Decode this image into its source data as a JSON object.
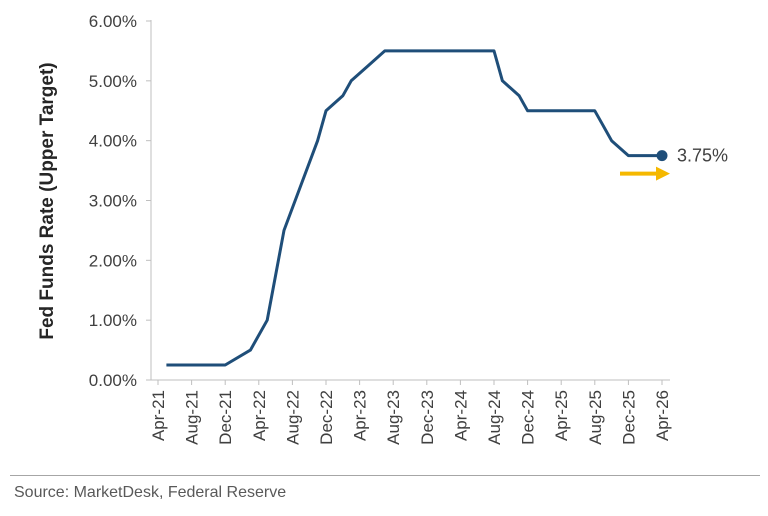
{
  "chart_data": {
    "type": "line",
    "title": "",
    "ylabel": "Fed Funds Rate (Upper Target)",
    "xlabel": "",
    "ylim": [
      0,
      6
    ],
    "ytick_labels": [
      "0.00%",
      "1.00%",
      "2.00%",
      "3.00%",
      "4.00%",
      "5.00%",
      "6.00%"
    ],
    "ytick_values": [
      0,
      1,
      2,
      3,
      4,
      5,
      6
    ],
    "xtick_labels": [
      "Apr-21",
      "Aug-21",
      "Dec-21",
      "Apr-22",
      "Aug-22",
      "Dec-22",
      "Apr-23",
      "Aug-23",
      "Dec-23",
      "Apr-24",
      "Aug-24",
      "Dec-24",
      "Apr-25",
      "Aug-25",
      "Dec-25",
      "Apr-26"
    ],
    "xtick_values": [
      "2021-04",
      "2021-08",
      "2021-12",
      "2022-04",
      "2022-08",
      "2022-12",
      "2023-04",
      "2023-08",
      "2023-12",
      "2024-04",
      "2024-08",
      "2024-12",
      "2025-04",
      "2025-08",
      "2025-12",
      "2026-04"
    ],
    "series": [
      {
        "color": "#1f4e79",
        "points": [
          [
            "2021-05",
            0.25
          ],
          [
            "2021-12",
            0.25
          ],
          [
            "2022-03",
            0.5
          ],
          [
            "2022-05",
            1.0
          ],
          [
            "2022-06",
            1.75
          ],
          [
            "2022-07",
            2.5
          ],
          [
            "2022-09",
            3.25
          ],
          [
            "2022-11",
            4.0
          ],
          [
            "2022-12",
            4.5
          ],
          [
            "2023-02",
            4.75
          ],
          [
            "2023-03",
            5.0
          ],
          [
            "2023-05",
            5.25
          ],
          [
            "2023-07",
            5.5
          ],
          [
            "2024-08",
            5.5
          ],
          [
            "2024-09",
            5.0
          ],
          [
            "2024-11",
            4.75
          ],
          [
            "2024-12",
            4.5
          ],
          [
            "2025-08",
            4.5
          ],
          [
            "2025-09",
            4.25
          ],
          [
            "2025-10",
            4.0
          ],
          [
            "2025-12",
            3.75
          ],
          [
            "2026-04",
            3.75
          ]
        ]
      }
    ],
    "end_label": "3.75%",
    "end_marker_color": "#1f4e79",
    "arrow_color": "#f5b800",
    "grid": false
  },
  "source": "Source: MarketDesk, Federal Reserve"
}
